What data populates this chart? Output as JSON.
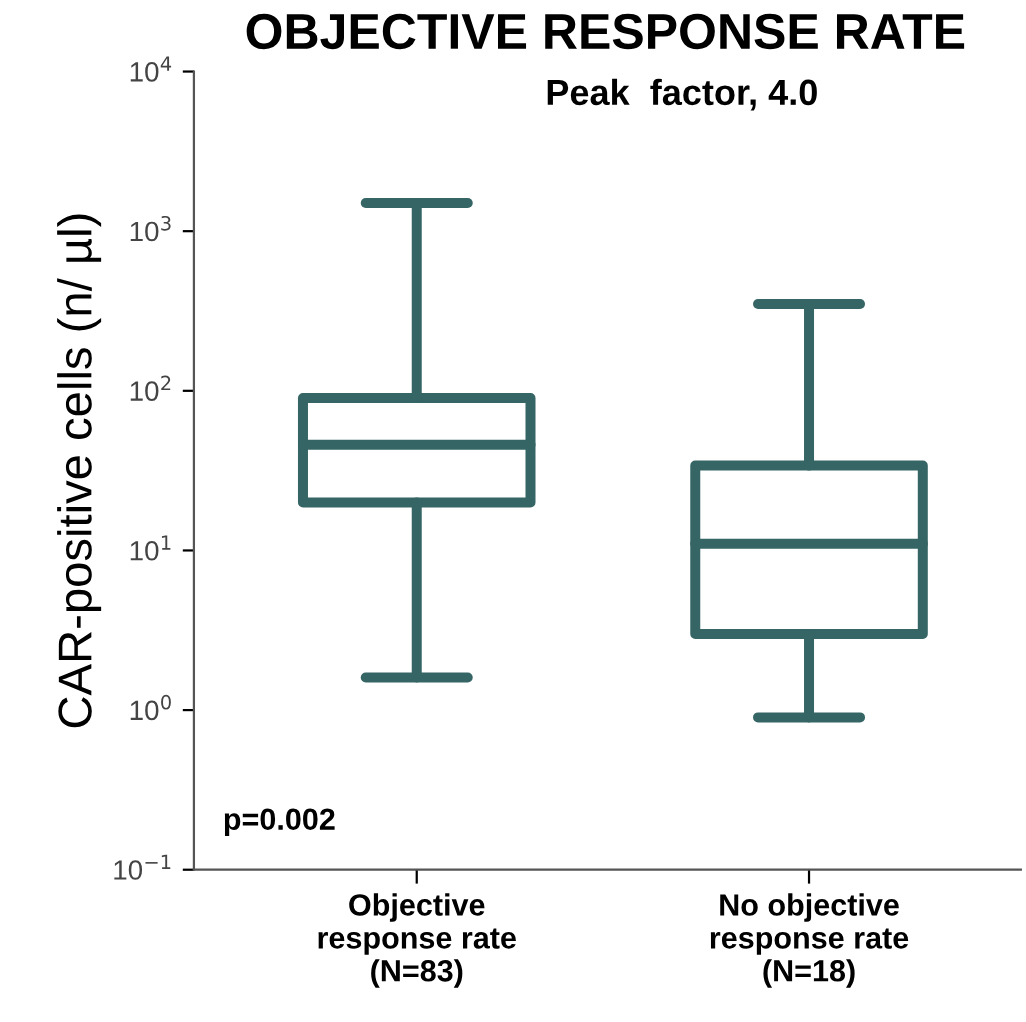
{
  "chart_data": {
    "type": "box",
    "title": "OBJECTIVE RESPONSE RATE",
    "subtitle": "Peak  factor, 4.0",
    "ylabel": "CAR-positive cells (n/ µl)",
    "categories": [
      "Objective\nresponse rate\n(N=83)",
      "No objective\nresponse rate\n(N=18)"
    ],
    "boxes": [
      {
        "low": 1.6,
        "q1": 20,
        "median": 46,
        "q3": 90,
        "high": 1500
      },
      {
        "low": 0.9,
        "q1": 3,
        "median": 11,
        "q3": 34,
        "high": 350
      }
    ],
    "color": "#356565",
    "log": true,
    "ylim": [
      0.1,
      10000
    ],
    "yticks": [
      {
        "value": 0.1,
        "label": "10$^{−1}$"
      },
      {
        "value": 1,
        "label": "10$^{0}$"
      },
      {
        "value": 10,
        "label": "10$^{1}$"
      },
      {
        "value": 100,
        "label": "10$^{2}$"
      },
      {
        "value": 1000,
        "label": "10$^{3}$"
      },
      {
        "value": 10000,
        "label": "10$^{4}$"
      }
    ],
    "grid": false,
    "annotations": [
      "p=0.002"
    ]
  }
}
